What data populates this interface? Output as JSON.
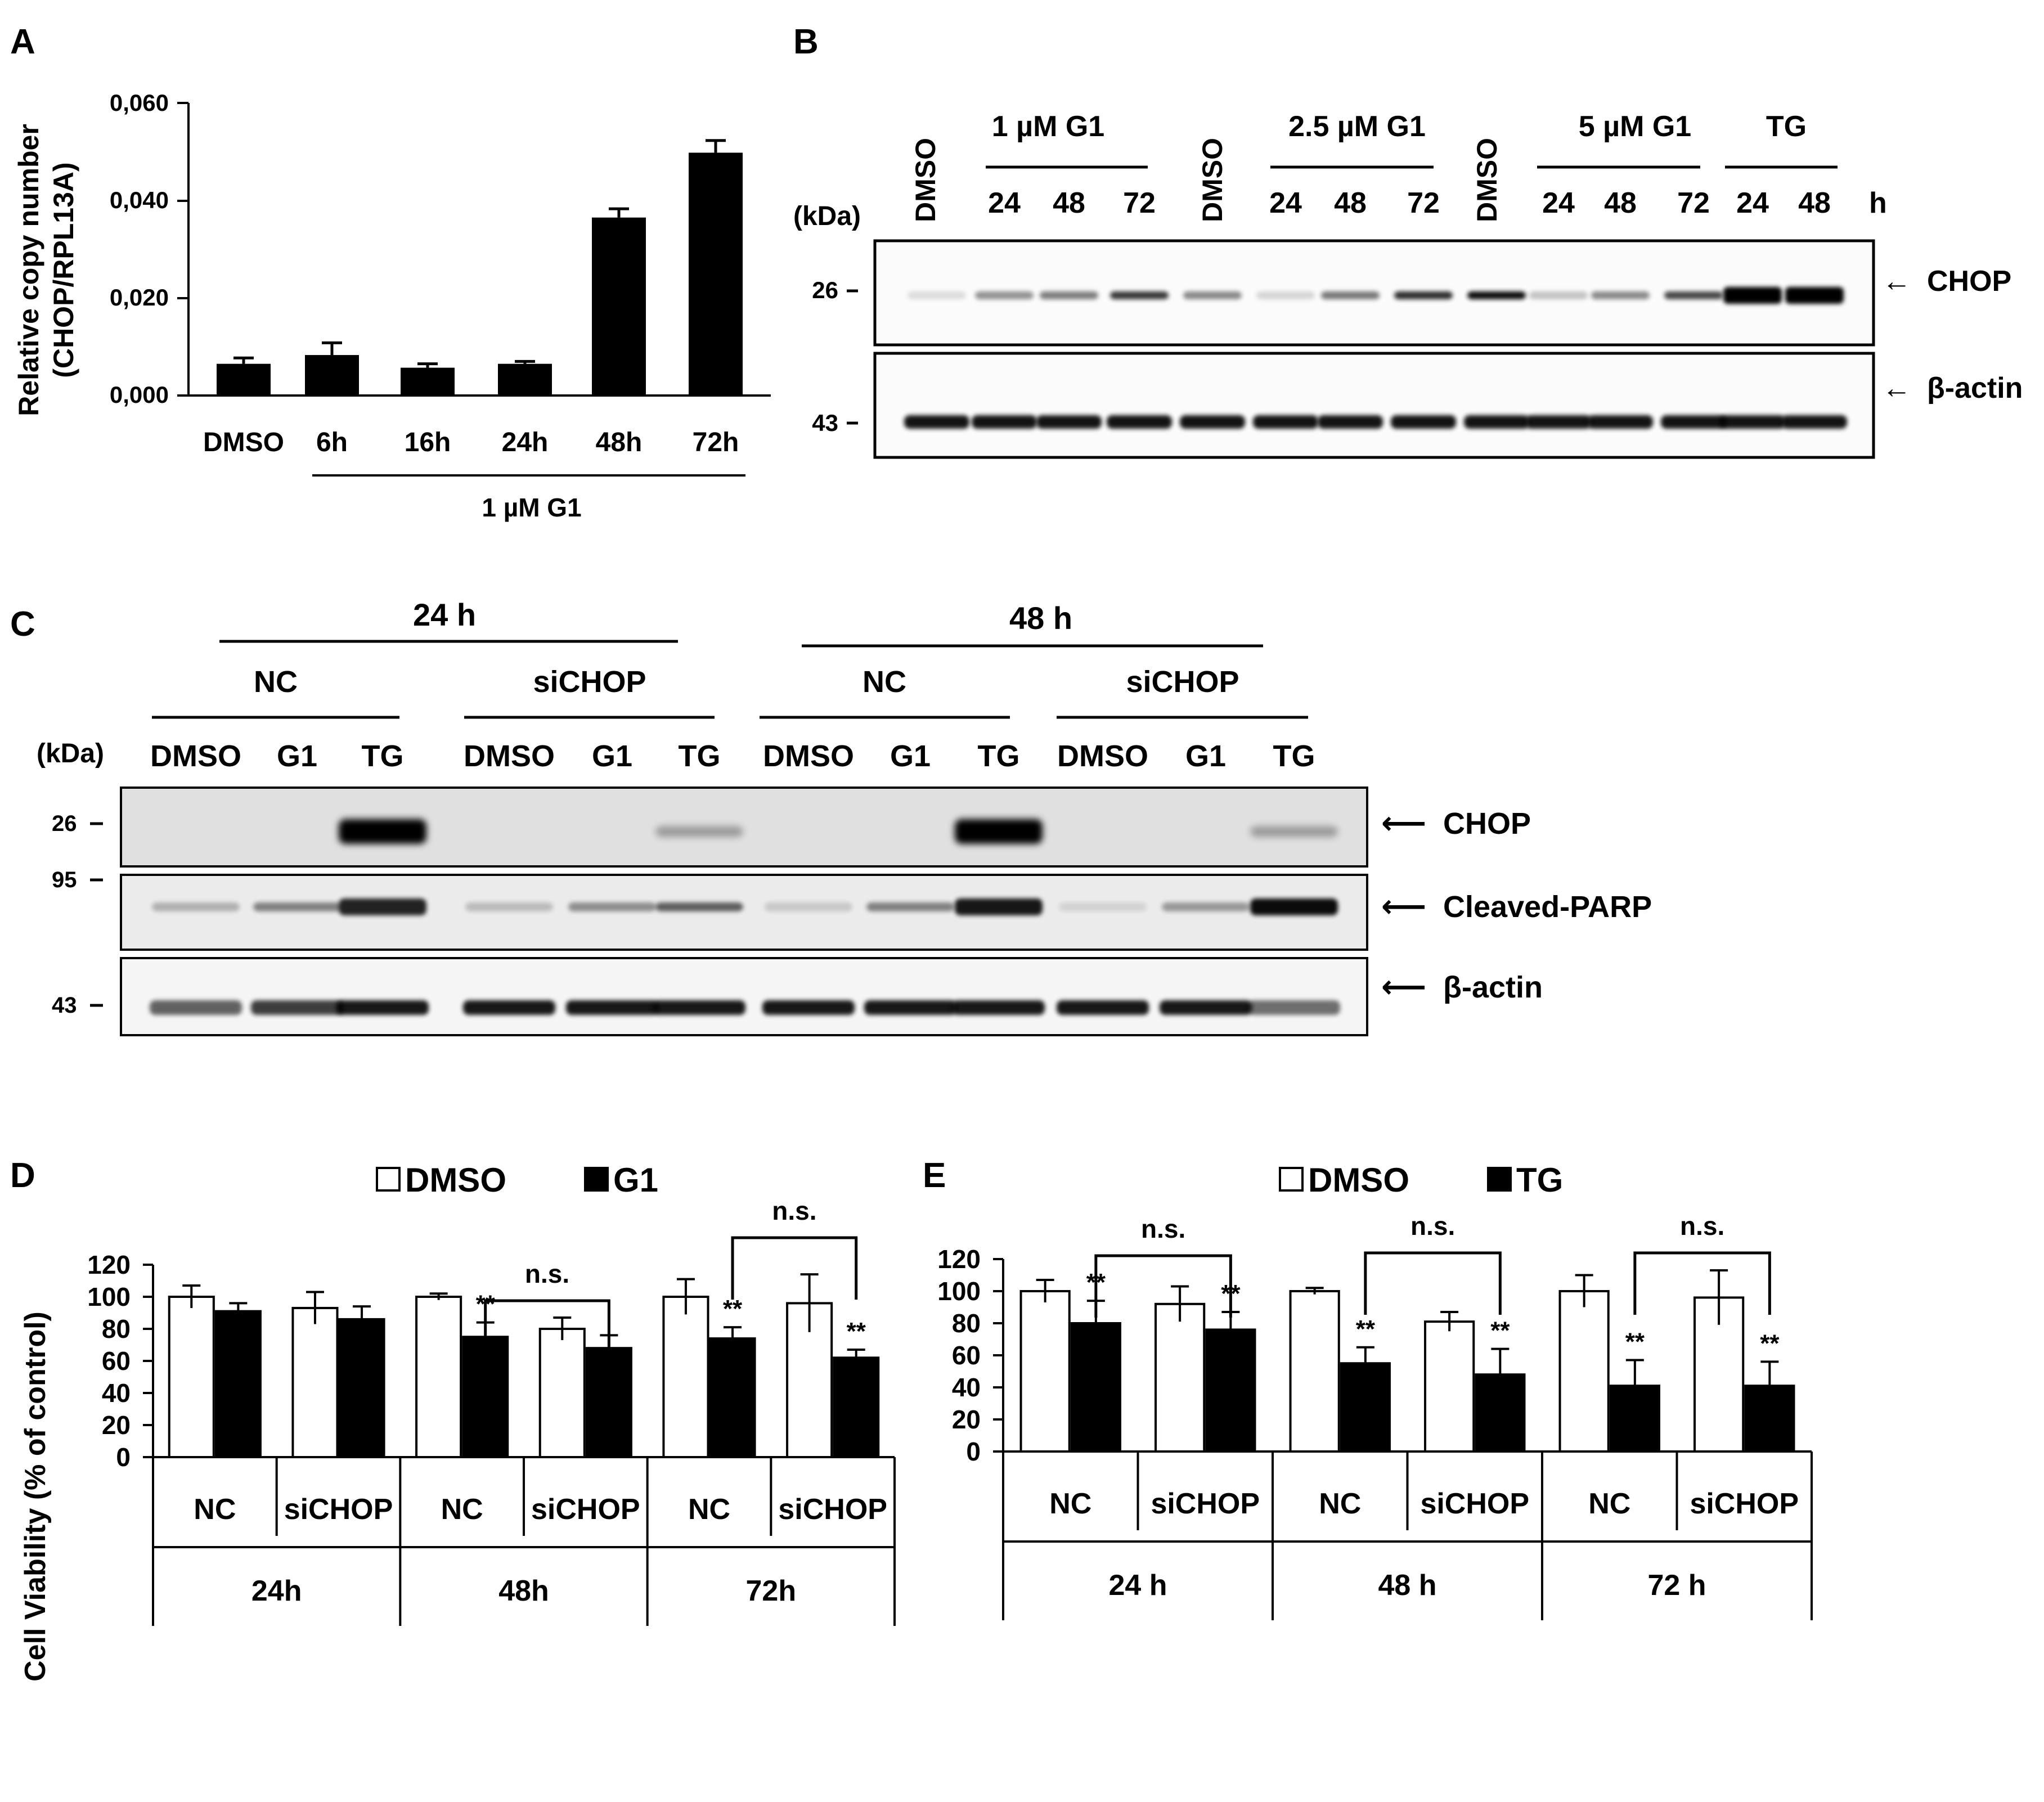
{
  "panel_letters": [
    "A",
    "B",
    "C",
    "D",
    "E"
  ],
  "panelA": {
    "ylabel_lines": [
      "Relative copy number",
      "(CHOP/RPL13A)"
    ],
    "ytick_labels": [
      "0,000",
      "0,020",
      "0,040",
      "0,060"
    ],
    "bracket_label": "1 µM G1"
  },
  "panelB": {
    "kda_label": "(kDa)",
    "hour_label": "h",
    "group_labels": [
      "1 µM G1",
      "2.5 µM G1",
      "5 µM G1",
      "TG"
    ],
    "dmso_labels": [
      "DMSO",
      "DMSO",
      "DMSO"
    ],
    "time_labels": [
      "24",
      "48",
      "72",
      "24",
      "48",
      "72",
      "24",
      "48",
      "72",
      "24",
      "48"
    ],
    "markers": [
      "26",
      "43"
    ],
    "bands": [
      "CHOP",
      "β-actin"
    ]
  },
  "panelC": {
    "kda_label": "(kDa)",
    "time_labels": [
      "24 h",
      "48 h"
    ],
    "group_labels": [
      "NC",
      "siCHOP",
      "NC",
      "siCHOP"
    ],
    "lane_labels": [
      "DMSO",
      "G1",
      "TG",
      "DMSO",
      "G1",
      "TG",
      "DMSO",
      "G1",
      "TG",
      "DMSO",
      "G1",
      "TG"
    ],
    "markers": [
      "26",
      "95",
      "43"
    ],
    "bands": [
      "CHOP",
      "Cleaved-PARP",
      "β-actin"
    ]
  },
  "panelD": {
    "ylabel": "Cell Viability (% of control)",
    "ytick_labels": [
      "0",
      "20",
      "40",
      "60",
      "80",
      "100",
      "120"
    ],
    "legend": [
      "DMSO",
      "G1"
    ],
    "group_labels": [
      "NC",
      "siCHOP",
      "NC",
      "siCHOP",
      "NC",
      "siCHOP"
    ],
    "time_labels": [
      "24h",
      "48h",
      "72h"
    ],
    "sig_labels": [
      "**",
      "**",
      "**",
      "**"
    ],
    "ns_labels": [
      "n.s.",
      "n.s."
    ]
  },
  "panelE": {
    "ytick_labels": [
      "0",
      "20",
      "40",
      "60",
      "80",
      "100",
      "120"
    ],
    "legend": [
      "DMSO",
      "TG"
    ],
    "group_labels": [
      "NC",
      "siCHOP",
      "NC",
      "siCHOP",
      "NC",
      "siCHOP"
    ],
    "time_labels": [
      "24 h",
      "48 h",
      "72 h"
    ],
    "sig_labels": [
      "**",
      "**",
      "**",
      "**",
      "**",
      "**"
    ],
    "ns_labels": [
      "n.s.",
      "n.s.",
      "n.s."
    ]
  },
  "chart_data": [
    {
      "type": "bar",
      "categories": [
        "DMSO",
        "6h",
        "16h",
        "24h",
        "48h",
        "72h"
      ],
      "values": [
        0.0065,
        0.0083,
        0.0057,
        0.0065,
        0.0365,
        0.0498
      ],
      "errors": [
        0.0012,
        0.0025,
        0.0008,
        0.0005,
        0.0018,
        0.0025
      ],
      "ylim": [
        0,
        0.06
      ],
      "color": "#000000"
    },
    {
      "type": "bar",
      "categories": [
        "NC 24h",
        "siCHOP 24h",
        "NC 48h",
        "siCHOP 48h",
        "NC 72h",
        "siCHOP 72h"
      ],
      "series": [
        {
          "name": "DMSO",
          "values": [
            100,
            93,
            100,
            80,
            100,
            96
          ],
          "errors": [
            7,
            10,
            2,
            7,
            11,
            18
          ],
          "color": "#ffffff"
        },
        {
          "name": "G1",
          "values": [
            91,
            86,
            75,
            68,
            74,
            62
          ],
          "errors": [
            5,
            8,
            9,
            8,
            7,
            5
          ],
          "color": "#000000"
        }
      ],
      "ylim": [
        0,
        120
      ]
    },
    {
      "type": "bar",
      "categories": [
        "NC 24 h",
        "siCHOP 24 h",
        "NC 48 h",
        "siCHOP 48 h",
        "NC 72 h",
        "siCHOP 72 h"
      ],
      "series": [
        {
          "name": "DMSO",
          "values": [
            100,
            92,
            100,
            81,
            100,
            96
          ],
          "errors": [
            7,
            11,
            2,
            6,
            10,
            17
          ],
          "color": "#ffffff"
        },
        {
          "name": "TG",
          "values": [
            80,
            76,
            55,
            48,
            41,
            41
          ],
          "errors": [
            14,
            11,
            10,
            16,
            16,
            15
          ],
          "color": "#000000"
        }
      ],
      "ylim": [
        0,
        120
      ]
    }
  ]
}
